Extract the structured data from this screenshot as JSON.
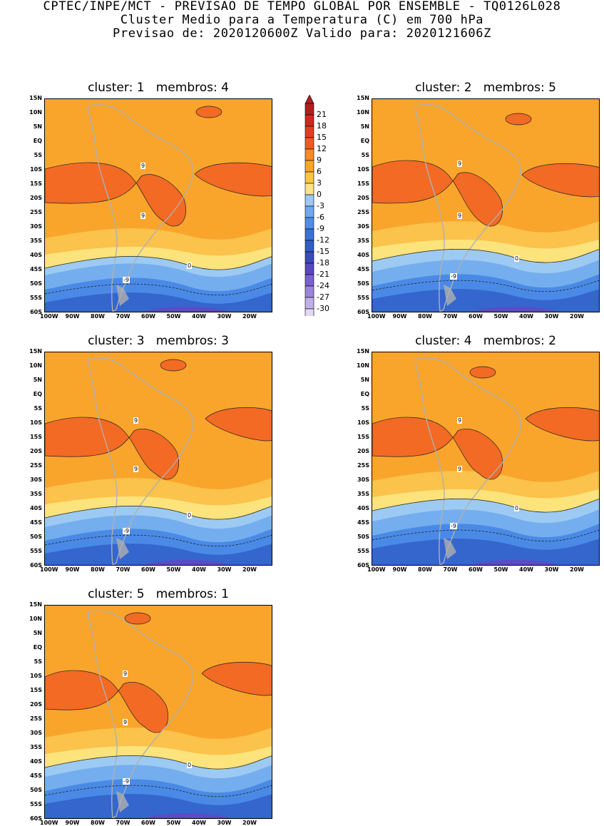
{
  "header": {
    "line1": "CPTEC/INPE/MCT - PREVISAO DE TEMPO GLOBAL POR ENSEMBLE - TQ0126L028",
    "line2": "Cluster Medio para a Temperatura (C) em 700 hPa",
    "line3": "Previsao de: 2020120600Z   Valido para: 2020121606Z"
  },
  "lat_labels": [
    "15N",
    "10N",
    "5N",
    "EQ",
    "5S",
    "10S",
    "15S",
    "20S",
    "25S",
    "30S",
    "35S",
    "40S",
    "45S",
    "50S",
    "55S",
    "60S"
  ],
  "lon_labels": [
    "100W",
    "90W",
    "80W",
    "70W",
    "60W",
    "50W",
    "40W",
    "30W",
    "20W"
  ],
  "panels": [
    {
      "title": "cluster: 1   membros: 4"
    },
    {
      "title": "cluster: 2   membros: 5"
    },
    {
      "title": "cluster: 3   membros: 3"
    },
    {
      "title": "cluster: 4   membros: 2"
    },
    {
      "title": "cluster: 5   membros: 1"
    }
  ],
  "contour_labels": {
    "nine": "9",
    "zero": "0",
    "neg9": "-9"
  },
  "colorbar": {
    "levels": [
      "21",
      "18",
      "15",
      "12",
      "9",
      "6",
      "3",
      "0",
      "-3",
      "-6",
      "-9",
      "-12",
      "-15",
      "-18",
      "-21",
      "-24",
      "-27",
      "-30"
    ],
    "colors": [
      "#b01e1e",
      "#cc2a1e",
      "#e04020",
      "#f05a22",
      "#f58a2a",
      "#f8a628",
      "#fbc442",
      "#fde28a",
      "#9cc8f5",
      "#6fa8ee",
      "#4f8ee6",
      "#3a73d4",
      "#2f5fc4",
      "#3a4cb6",
      "#5a48c0",
      "#7a62d0",
      "#9b85dc",
      "#c0b0e8",
      "#e2d9f4"
    ],
    "top_color": "#b01e1e",
    "bottom_color": "#f2eefa"
  },
  "colors": {
    "orange": "#f9a52c",
    "dark_orange": "#f26a24",
    "red": "#e0402a",
    "light_orange": "#fbc24c",
    "yellow": "#fde37c",
    "lblue1": "#9dcaf3",
    "lblue2": "#74aeee",
    "blue": "#4a8ae6",
    "dblue": "#3466cd",
    "purple": "#5a4cc4",
    "land": "#b0b0b0"
  }
}
